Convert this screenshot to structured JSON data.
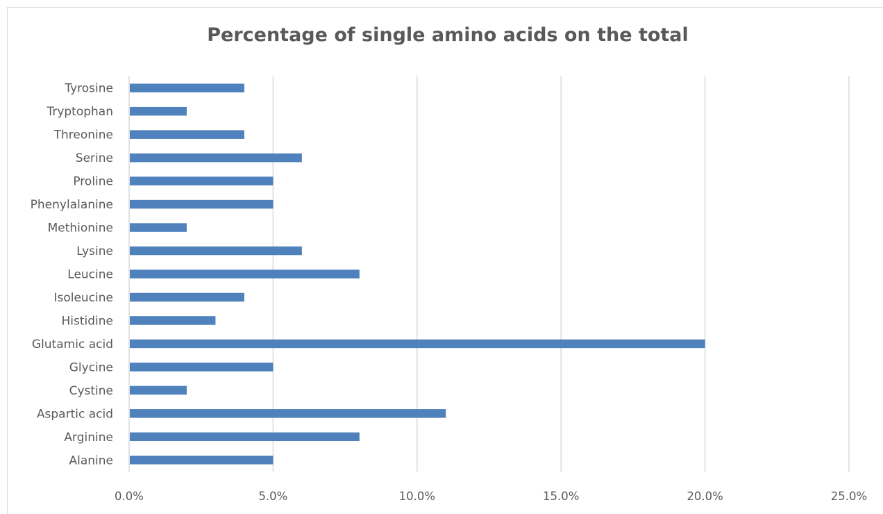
{
  "chart_data": {
    "type": "bar",
    "orientation": "horizontal",
    "title": "Percentage of single amino acids on the total",
    "xlabel": "",
    "ylabel": "",
    "categories": [
      "Alanine",
      "Arginine",
      "Aspartic acid",
      "Cystine",
      "Glycine",
      "Glutamic acid",
      "Histidine",
      "Isoleucine",
      "Leucine",
      "Lysine",
      "Methionine",
      "Phenylalanine",
      "Proline",
      "Serine",
      "Threonine",
      "Tryptophan",
      "Tyrosine"
    ],
    "values": [
      5.0,
      8.0,
      11.0,
      2.0,
      5.0,
      20.0,
      3.0,
      4.0,
      8.0,
      6.0,
      2.0,
      5.0,
      5.0,
      6.0,
      4.0,
      2.0,
      4.0
    ],
    "xlim": [
      0,
      25
    ],
    "xticks": [
      0,
      5,
      10,
      15,
      20,
      25
    ],
    "xtick_labels": [
      "0.0%",
      "5.0%",
      "10.0%",
      "15.0%",
      "20.0%",
      "25.0%"
    ],
    "grid": "vertical major gridlines",
    "legend": "none",
    "bar_color": "#4f81bd",
    "grid_color": "#d9d9d9",
    "text_color": "#595959"
  }
}
